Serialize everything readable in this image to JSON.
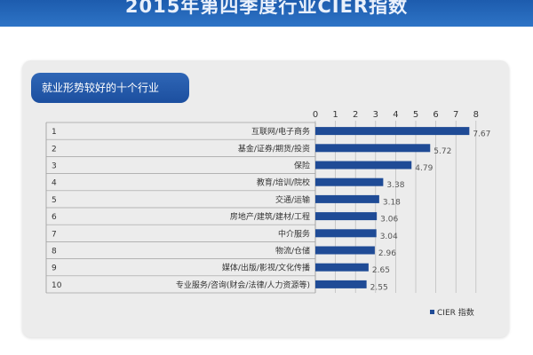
{
  "banner": {
    "title": "2015年第四季度行业CIER指数"
  },
  "panel": {
    "title": "就业形势较好的十个行业"
  },
  "colors": {
    "bar": "#1f4b96",
    "banner": "#1d5cae",
    "card": "#ececec"
  },
  "chart_data": {
    "type": "bar",
    "orientation": "horizontal",
    "categories": [
      "互联网/电子商务",
      "基金/证券/期货/投资",
      "保险",
      "教育/培训/院校",
      "交通/运输",
      "房地产/建筑/建材/工程",
      "中介服务",
      "物流/仓储",
      "媒体/出版/影视/文化传播",
      "专业服务/咨询(财会/法律/人力资源等)"
    ],
    "ranks": [
      "1",
      "2",
      "3",
      "4",
      "5",
      "6",
      "7",
      "8",
      "9",
      "10"
    ],
    "series": [
      {
        "name": "CIER 指数",
        "values": [
          7.67,
          5.72,
          4.79,
          3.38,
          3.18,
          3.06,
          3.04,
          2.96,
          2.65,
          2.55
        ]
      }
    ],
    "value_labels": [
      "7.67",
      "5.72",
      "4.79",
      "3.38",
      "3.18",
      "3.06",
      "3.04",
      "2.96",
      "2.65",
      "2.55"
    ],
    "xlim": [
      0,
      8
    ],
    "x_ticks": [
      "0",
      "1",
      "2",
      "3",
      "4",
      "5",
      "6",
      "7",
      "8"
    ],
    "grid": true,
    "legend_position": "bottom-right"
  }
}
